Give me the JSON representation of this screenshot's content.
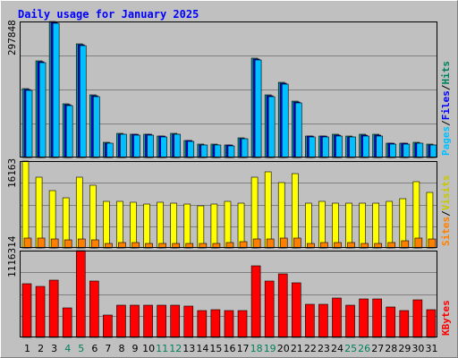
{
  "chart_data": {
    "type": "bar",
    "title": "Daily usage for January 2025",
    "categories": [
      "1",
      "2",
      "3",
      "4",
      "5",
      "6",
      "7",
      "8",
      "9",
      "10",
      "11",
      "12",
      "13",
      "14",
      "15",
      "16",
      "17",
      "18",
      "19",
      "20",
      "21",
      "22",
      "23",
      "24",
      "25",
      "26",
      "27",
      "28",
      "29",
      "30",
      "31"
    ],
    "weekend_days": [
      "4",
      "5",
      "11",
      "12",
      "18",
      "19",
      "25",
      "26"
    ],
    "panels": [
      {
        "id": "pages-files-hits",
        "max_label": "297848",
        "ylim": [
          0,
          297848
        ],
        "legend": [
          "Pages",
          "/",
          "Files",
          "/",
          "Hits"
        ],
        "series": [
          {
            "name": "Hits",
            "color": "#00a0a0",
            "values": [
              150000,
              212000,
              297848,
              117000,
              248000,
              138000,
              33000,
              52000,
              51000,
              51000,
              48000,
              52000,
              38000,
              29000,
              29000,
              28000,
              43000,
              218000,
              137000,
              165000,
              124000,
              48000,
              48000,
              50000,
              47000,
              50000,
              50000,
              32000,
              32000,
              33000,
              29000
            ]
          },
          {
            "name": "Files",
            "color": "#0000ff",
            "values": [
              148000,
              210000,
              295000,
              115000,
              246000,
              136000,
              32000,
              51000,
              50000,
              50000,
              47000,
              51000,
              37000,
              28000,
              28000,
              27000,
              42000,
              216000,
              135000,
              163000,
              122000,
              47000,
              47000,
              49000,
              46000,
              49000,
              49000,
              31000,
              31000,
              32000,
              28000
            ]
          },
          {
            "name": "Pages",
            "color": "#00c0ff",
            "values": [
              146000,
              208000,
              293000,
              113000,
              244000,
              134000,
              31000,
              50000,
              49000,
              49000,
              46000,
              50000,
              36000,
              27000,
              27000,
              26000,
              41000,
              214000,
              133000,
              161000,
              120000,
              46000,
              46000,
              48000,
              45000,
              48000,
              48000,
              30000,
              30000,
              31000,
              27000
            ]
          }
        ]
      },
      {
        "id": "visits-sites",
        "max_label": "16163",
        "ylim": [
          0,
          16163
        ],
        "legend": [
          "Sites",
          "/",
          "Visits"
        ],
        "series": [
          {
            "name": "Visits",
            "color": "#ffff00",
            "values": [
              16163,
              13200,
              10600,
              9400,
              13100,
              11700,
              8700,
              8700,
              8500,
              8100,
              8500,
              8300,
              8100,
              7900,
              8100,
              8700,
              8300,
              13100,
              14200,
              12200,
              13800,
              8400,
              8600,
              8400,
              8400,
              8400,
              8400,
              8700,
              9100,
              12400,
              10400
            ]
          },
          {
            "name": "Sites",
            "color": "#ff8000",
            "values": [
              1850,
              1800,
              1700,
              1550,
              1600,
              1550,
              900,
              950,
              950,
              900,
              900,
              850,
              800,
              800,
              850,
              950,
              1100,
              1700,
              1600,
              1850,
              1800,
              750,
              950,
              950,
              1050,
              900,
              850,
              1050,
              1400,
              1900,
              1650
            ]
          }
        ]
      },
      {
        "id": "kbytes",
        "max_label": "1116314",
        "ylim": [
          0,
          1116314
        ],
        "legend": [
          "KBytes"
        ],
        "series": [
          {
            "name": "KBytes",
            "color": "#ff0000",
            "values": [
              690000,
              660000,
              740000,
              380000,
              1116314,
              720000,
              290000,
              420000,
              410000,
              420000,
              410000,
              410000,
              400000,
              350000,
              360000,
              350000,
              350000,
              920000,
              720000,
              820000,
              700000,
              430000,
              430000,
              510000,
              420000,
              500000,
              490000,
              390000,
              350000,
              480000,
              360000
            ]
          }
        ]
      }
    ],
    "colors": {
      "background": "#c0c0c0",
      "plot": "#c0c0c0",
      "title": "#0000ff",
      "label": "#000000",
      "weekend": "#00805c",
      "grid": "#808080",
      "frame_light": "#ffffff",
      "frame_dark": "#808080"
    },
    "grid": true
  }
}
